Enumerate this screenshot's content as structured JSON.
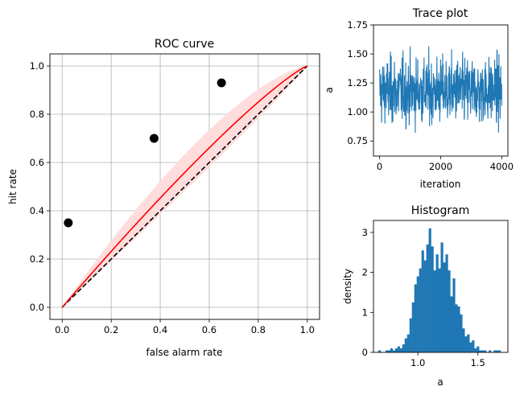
{
  "chart_data": [
    {
      "type": "line",
      "title": "ROC curve",
      "xlabel": "false alarm rate",
      "ylabel": "hit rate",
      "xlim": [
        -0.05,
        1.05
      ],
      "ylim": [
        -0.05,
        1.05
      ],
      "xticks": [
        "0.0",
        "0.2",
        "0.4",
        "0.6",
        "0.8",
        "1.0"
      ],
      "yticks": [
        "0.0",
        "0.2",
        "0.4",
        "0.6",
        "0.8",
        "1.0"
      ],
      "grid": true,
      "colors": {
        "fit": "#ff0000",
        "band": "#ffdddd",
        "chance": "#000000",
        "points": "#000000"
      },
      "series": [
        {
          "kind": "chance-diagonal",
          "x": [
            0,
            1
          ],
          "y": [
            0,
            1
          ],
          "style": "dashed"
        },
        {
          "kind": "fitted-curve-exponent",
          "a": 1.18
        },
        {
          "kind": "credible-band-exponents",
          "lower": 0.95,
          "upper": 1.45
        },
        {
          "kind": "observed",
          "x": [
            0.025,
            0.375,
            0.65
          ],
          "y": [
            0.35,
            0.7,
            0.93
          ]
        }
      ]
    },
    {
      "type": "line",
      "title": "Trace plot",
      "xlabel": "iteration",
      "ylabel": "a",
      "xlim": [
        -200,
        4200
      ],
      "ylim": [
        0.62,
        1.75
      ],
      "xticks": [
        "0",
        "2000",
        "4000"
      ],
      "yticks": [
        "0.75",
        "1.00",
        "1.25",
        "1.50",
        "1.75"
      ],
      "grid": false,
      "color": "#1f77b4",
      "n_iterations": 4000,
      "mean": 1.18,
      "sd": 0.14,
      "min": 0.67,
      "max": 1.7
    },
    {
      "type": "bar",
      "title": "Histogram",
      "xlabel": "a",
      "ylabel": "density",
      "xlim": [
        0.63,
        1.75
      ],
      "ylim": [
        0,
        3.3
      ],
      "xticks": [
        "1.0",
        "1.5"
      ],
      "yticks": [
        "0",
        "1",
        "2",
        "3"
      ],
      "grid": false,
      "color": "#1f77b4",
      "bin_start": 0.67,
      "bin_width": 0.02,
      "values": [
        0.05,
        0.0,
        0.0,
        0.05,
        0.05,
        0.1,
        0.05,
        0.1,
        0.15,
        0.1,
        0.2,
        0.35,
        0.45,
        0.85,
        1.25,
        1.7,
        1.9,
        2.1,
        2.55,
        2.3,
        2.7,
        3.1,
        2.65,
        2.05,
        2.45,
        2.1,
        2.75,
        2.25,
        2.45,
        2.05,
        1.4,
        1.85,
        1.2,
        1.15,
        0.95,
        0.6,
        0.4,
        0.45,
        0.25,
        0.3,
        0.1,
        0.15,
        0.05,
        0.05,
        0.05,
        0.0,
        0.05,
        0.0,
        0.05,
        0.05,
        0.05
      ]
    }
  ]
}
